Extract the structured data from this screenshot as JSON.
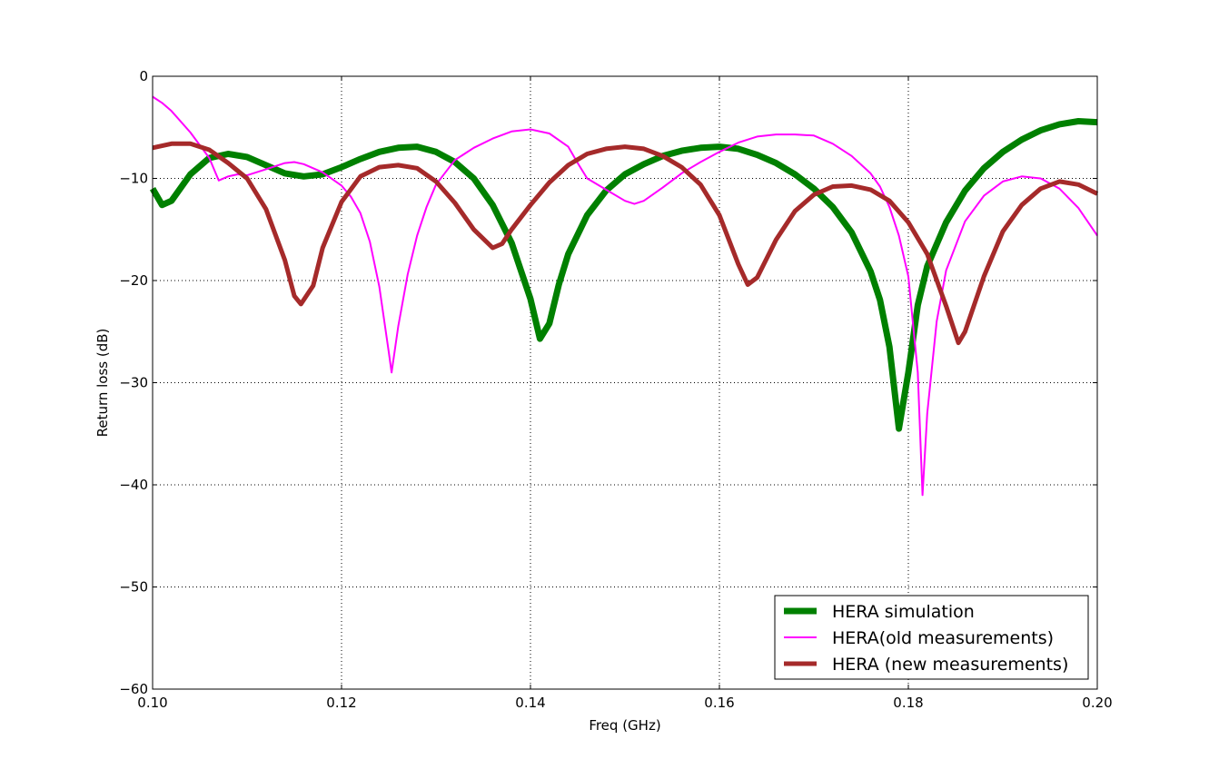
{
  "chart_data": {
    "type": "line",
    "title": "",
    "xlabel": "Freq (GHz)",
    "ylabel": "Return loss (dB)",
    "xlim": [
      0.1,
      0.2
    ],
    "ylim": [
      -60,
      0
    ],
    "xticks": [
      "0.10",
      "0.12",
      "0.14",
      "0.16",
      "0.18",
      "0.20"
    ],
    "yticks": [
      "0",
      "−10",
      "−20",
      "−30",
      "−40",
      "−50",
      "−60"
    ],
    "grid": true,
    "legend_position": "lower right",
    "series": [
      {
        "name": "HERA simulation",
        "color": "#008000",
        "points": [
          [
            0.1,
            -11.0
          ],
          [
            0.101,
            -12.6
          ],
          [
            0.102,
            -12.2
          ],
          [
            0.104,
            -9.6
          ],
          [
            0.106,
            -8.0
          ],
          [
            0.108,
            -7.6
          ],
          [
            0.11,
            -7.9
          ],
          [
            0.112,
            -8.7
          ],
          [
            0.114,
            -9.5
          ],
          [
            0.116,
            -9.8
          ],
          [
            0.118,
            -9.6
          ],
          [
            0.12,
            -8.9
          ],
          [
            0.122,
            -8.1
          ],
          [
            0.124,
            -7.4
          ],
          [
            0.126,
            -7.0
          ],
          [
            0.128,
            -6.9
          ],
          [
            0.13,
            -7.4
          ],
          [
            0.132,
            -8.4
          ],
          [
            0.134,
            -10.0
          ],
          [
            0.136,
            -12.6
          ],
          [
            0.138,
            -16.3
          ],
          [
            0.14,
            -21.8
          ],
          [
            0.141,
            -25.7
          ],
          [
            0.142,
            -24.2
          ],
          [
            0.143,
            -20.4
          ],
          [
            0.144,
            -17.4
          ],
          [
            0.146,
            -13.6
          ],
          [
            0.148,
            -11.2
          ],
          [
            0.15,
            -9.6
          ],
          [
            0.152,
            -8.6
          ],
          [
            0.154,
            -7.8
          ],
          [
            0.156,
            -7.3
          ],
          [
            0.158,
            -7.0
          ],
          [
            0.16,
            -6.9
          ],
          [
            0.162,
            -7.1
          ],
          [
            0.164,
            -7.7
          ],
          [
            0.166,
            -8.5
          ],
          [
            0.168,
            -9.6
          ],
          [
            0.17,
            -11.0
          ],
          [
            0.172,
            -12.8
          ],
          [
            0.174,
            -15.3
          ],
          [
            0.176,
            -19.1
          ],
          [
            0.177,
            -21.9
          ],
          [
            0.178,
            -26.5
          ],
          [
            0.179,
            -34.5
          ],
          [
            0.18,
            -29.0
          ],
          [
            0.181,
            -22.4
          ],
          [
            0.182,
            -18.6
          ],
          [
            0.184,
            -14.3
          ],
          [
            0.186,
            -11.2
          ],
          [
            0.188,
            -9.0
          ],
          [
            0.19,
            -7.4
          ],
          [
            0.192,
            -6.2
          ],
          [
            0.194,
            -5.3
          ],
          [
            0.196,
            -4.7
          ],
          [
            0.198,
            -4.4
          ],
          [
            0.2,
            -4.5
          ]
        ]
      },
      {
        "name": "HERA(old measurements)",
        "color": "#ff00ff",
        "points": [
          [
            0.1,
            -2.0
          ],
          [
            0.101,
            -2.6
          ],
          [
            0.102,
            -3.4
          ],
          [
            0.104,
            -5.5
          ],
          [
            0.106,
            -8.0
          ],
          [
            0.107,
            -10.2
          ],
          [
            0.108,
            -9.8
          ],
          [
            0.109,
            -9.6
          ],
          [
            0.11,
            -9.7
          ],
          [
            0.112,
            -9.1
          ],
          [
            0.114,
            -8.5
          ],
          [
            0.115,
            -8.4
          ],
          [
            0.116,
            -8.6
          ],
          [
            0.118,
            -9.4
          ],
          [
            0.12,
            -10.7
          ],
          [
            0.121,
            -11.8
          ],
          [
            0.122,
            -13.4
          ],
          [
            0.123,
            -16.2
          ],
          [
            0.124,
            -20.6
          ],
          [
            0.125,
            -27.0
          ],
          [
            0.1253,
            -29.0
          ],
          [
            0.126,
            -24.5
          ],
          [
            0.127,
            -19.4
          ],
          [
            0.128,
            -15.6
          ],
          [
            0.129,
            -12.8
          ],
          [
            0.13,
            -10.6
          ],
          [
            0.132,
            -8.2
          ],
          [
            0.134,
            -7.0
          ],
          [
            0.136,
            -6.1
          ],
          [
            0.138,
            -5.4
          ],
          [
            0.14,
            -5.2
          ],
          [
            0.142,
            -5.6
          ],
          [
            0.144,
            -6.9
          ],
          [
            0.145,
            -8.5
          ],
          [
            0.146,
            -10.0
          ],
          [
            0.148,
            -11.1
          ],
          [
            0.15,
            -12.2
          ],
          [
            0.151,
            -12.5
          ],
          [
            0.152,
            -12.2
          ],
          [
            0.154,
            -10.9
          ],
          [
            0.156,
            -9.5
          ],
          [
            0.158,
            -8.4
          ],
          [
            0.16,
            -7.4
          ],
          [
            0.162,
            -6.5
          ],
          [
            0.164,
            -5.9
          ],
          [
            0.166,
            -5.7
          ],
          [
            0.168,
            -5.7
          ],
          [
            0.17,
            -5.8
          ],
          [
            0.172,
            -6.6
          ],
          [
            0.174,
            -7.8
          ],
          [
            0.176,
            -9.5
          ],
          [
            0.177,
            -10.8
          ],
          [
            0.178,
            -12.8
          ],
          [
            0.179,
            -15.6
          ],
          [
            0.18,
            -19.6
          ],
          [
            0.181,
            -29.0
          ],
          [
            0.1815,
            -41.0
          ],
          [
            0.182,
            -33.0
          ],
          [
            0.183,
            -24.0
          ],
          [
            0.184,
            -19.0
          ],
          [
            0.186,
            -14.2
          ],
          [
            0.188,
            -11.7
          ],
          [
            0.19,
            -10.3
          ],
          [
            0.192,
            -9.8
          ],
          [
            0.194,
            -10.0
          ],
          [
            0.196,
            -11.0
          ],
          [
            0.198,
            -12.9
          ],
          [
            0.2,
            -15.6
          ]
        ]
      },
      {
        "name": "HERA (new measurements)",
        "color": "#a52a2a",
        "points": [
          [
            0.1,
            -7.0
          ],
          [
            0.102,
            -6.6
          ],
          [
            0.104,
            -6.6
          ],
          [
            0.106,
            -7.2
          ],
          [
            0.108,
            -8.5
          ],
          [
            0.11,
            -10.0
          ],
          [
            0.112,
            -13.0
          ],
          [
            0.114,
            -18.0
          ],
          [
            0.115,
            -21.5
          ],
          [
            0.1157,
            -22.3
          ],
          [
            0.117,
            -20.5
          ],
          [
            0.118,
            -16.8
          ],
          [
            0.12,
            -12.3
          ],
          [
            0.122,
            -9.8
          ],
          [
            0.124,
            -8.9
          ],
          [
            0.126,
            -8.7
          ],
          [
            0.128,
            -9.0
          ],
          [
            0.13,
            -10.3
          ],
          [
            0.132,
            -12.4
          ],
          [
            0.134,
            -15.0
          ],
          [
            0.136,
            -16.8
          ],
          [
            0.137,
            -16.4
          ],
          [
            0.138,
            -15.0
          ],
          [
            0.14,
            -12.6
          ],
          [
            0.142,
            -10.4
          ],
          [
            0.144,
            -8.7
          ],
          [
            0.146,
            -7.6
          ],
          [
            0.148,
            -7.1
          ],
          [
            0.15,
            -6.9
          ],
          [
            0.152,
            -7.1
          ],
          [
            0.154,
            -7.8
          ],
          [
            0.156,
            -8.9
          ],
          [
            0.158,
            -10.6
          ],
          [
            0.16,
            -13.6
          ],
          [
            0.162,
            -18.4
          ],
          [
            0.163,
            -20.4
          ],
          [
            0.164,
            -19.7
          ],
          [
            0.166,
            -16.0
          ],
          [
            0.168,
            -13.2
          ],
          [
            0.17,
            -11.6
          ],
          [
            0.172,
            -10.8
          ],
          [
            0.174,
            -10.7
          ],
          [
            0.176,
            -11.1
          ],
          [
            0.178,
            -12.2
          ],
          [
            0.18,
            -14.3
          ],
          [
            0.182,
            -17.4
          ],
          [
            0.184,
            -22.5
          ],
          [
            0.1853,
            -26.1
          ],
          [
            0.186,
            -25.0
          ],
          [
            0.188,
            -19.6
          ],
          [
            0.19,
            -15.2
          ],
          [
            0.192,
            -12.6
          ],
          [
            0.194,
            -11.0
          ],
          [
            0.196,
            -10.3
          ],
          [
            0.198,
            -10.6
          ],
          [
            0.2,
            -11.5
          ]
        ]
      }
    ]
  }
}
